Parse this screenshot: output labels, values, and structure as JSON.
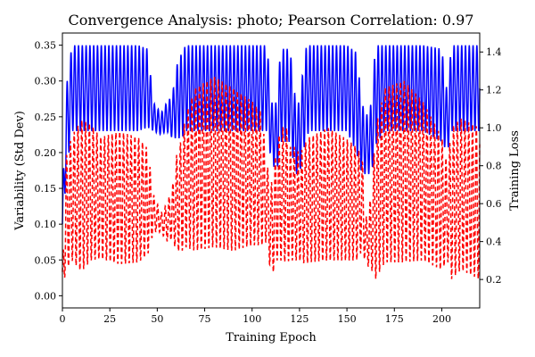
{
  "chart_data": {
    "type": "line",
    "title": "Convergence Analysis: photo; Pearson Correlation: 0.97",
    "xlabel": "Training Epoch",
    "ylabel_left": "Variability (Std Dev)",
    "ylabel_right": "Training Loss",
    "xlim": [
      0,
      220
    ],
    "ylim_left": [
      -0.017,
      0.367
    ],
    "ylim_right": [
      0.05,
      1.5
    ],
    "x_ticks": [
      0,
      25,
      50,
      75,
      100,
      125,
      150,
      175,
      200
    ],
    "y_ticks_left": [
      0.0,
      0.05,
      0.1,
      0.15,
      0.2,
      0.25,
      0.3,
      0.35
    ],
    "y_ticks_right": [
      0.2,
      0.4,
      0.6,
      0.8,
      1.0,
      1.2,
      1.4
    ],
    "grid": false,
    "legend": "none",
    "series": [
      {
        "axis": "left",
        "color": "#0000ff",
        "style": "solid",
        "x": [
          0,
          2,
          5,
          10,
          20,
          30,
          40,
          45,
          48,
          52,
          55,
          58,
          60,
          63,
          65,
          70,
          80,
          90,
          100,
          105,
          108,
          110,
          113,
          115,
          118,
          120,
          123,
          125,
          128,
          130,
          140,
          150,
          155,
          158,
          160,
          163,
          165,
          170,
          180,
          190,
          200,
          203,
          205,
          210,
          220
        ],
        "center": [
          0.1,
          0.23,
          0.29,
          0.29,
          0.29,
          0.29,
          0.29,
          0.29,
          0.25,
          0.24,
          0.25,
          0.25,
          0.27,
          0.28,
          0.29,
          0.29,
          0.29,
          0.29,
          0.29,
          0.29,
          0.29,
          0.23,
          0.22,
          0.28,
          0.28,
          0.28,
          0.22,
          0.22,
          0.28,
          0.29,
          0.29,
          0.29,
          0.27,
          0.22,
          0.21,
          0.22,
          0.28,
          0.29,
          0.29,
          0.29,
          0.28,
          0.24,
          0.29,
          0.29,
          0.29
        ],
        "amplitude": [
          0.03,
          0.06,
          0.06,
          0.06,
          0.06,
          0.06,
          0.06,
          0.055,
          0.02,
          0.015,
          0.02,
          0.03,
          0.05,
          0.06,
          0.06,
          0.06,
          0.06,
          0.06,
          0.06,
          0.06,
          0.06,
          0.04,
          0.05,
          0.065,
          0.065,
          0.065,
          0.05,
          0.05,
          0.065,
          0.06,
          0.06,
          0.06,
          0.07,
          0.05,
          0.04,
          0.05,
          0.07,
          0.06,
          0.06,
          0.06,
          0.065,
          0.04,
          0.06,
          0.06,
          0.06
        ]
      },
      {
        "axis": "right",
        "color": "#ff0000",
        "style": "dashed",
        "x": [
          0,
          2,
          5,
          10,
          15,
          20,
          30,
          40,
          45,
          48,
          52,
          55,
          58,
          60,
          63,
          65,
          70,
          80,
          90,
          100,
          105,
          108,
          110,
          113,
          115,
          118,
          120,
          123,
          125,
          128,
          130,
          140,
          150,
          155,
          158,
          160,
          163,
          165,
          170,
          180,
          190,
          200,
          203,
          205,
          210,
          220
        ],
        "center": [
          0.2,
          0.55,
          0.63,
          0.64,
          0.66,
          0.63,
          0.63,
          0.62,
          0.61,
          0.55,
          0.5,
          0.5,
          0.55,
          0.6,
          0.65,
          0.72,
          0.78,
          0.82,
          0.78,
          0.76,
          0.73,
          0.6,
          0.45,
          0.6,
          0.65,
          0.65,
          0.6,
          0.6,
          0.58,
          0.6,
          0.62,
          0.65,
          0.62,
          0.6,
          0.6,
          0.4,
          0.45,
          0.6,
          0.75,
          0.77,
          0.72,
          0.6,
          0.55,
          0.6,
          0.65,
          0.6
        ],
        "amplitude": [
          0.05,
          0.3,
          0.33,
          0.4,
          0.36,
          0.32,
          0.35,
          0.33,
          0.28,
          0.1,
          0.05,
          0.1,
          0.14,
          0.25,
          0.3,
          0.35,
          0.43,
          0.45,
          0.43,
          0.38,
          0.35,
          0.2,
          0.25,
          0.3,
          0.35,
          0.36,
          0.3,
          0.3,
          0.28,
          0.32,
          0.33,
          0.35,
          0.32,
          0.3,
          0.25,
          0.12,
          0.2,
          0.4,
          0.46,
          0.48,
          0.42,
          0.35,
          0.25,
          0.4,
          0.4,
          0.4
        ]
      }
    ]
  }
}
